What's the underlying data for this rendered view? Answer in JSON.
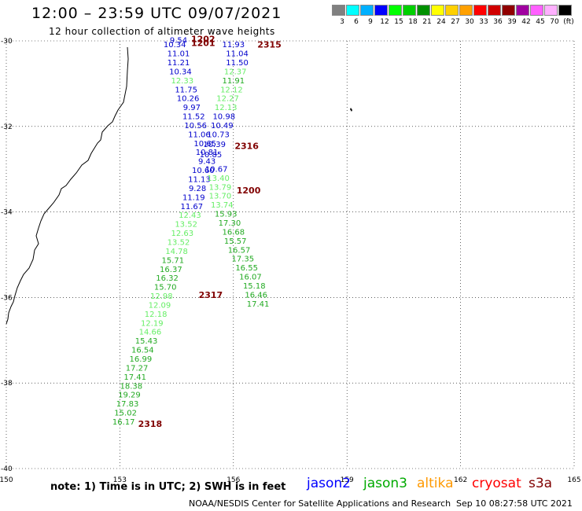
{
  "header": {
    "title": "12:00 – 23:59 UTC 09/07/2021",
    "subtitle": "12 hour collection of altimeter wave heights"
  },
  "legend": {
    "unit": "(ft)",
    "bins": [
      {
        "color": "#808080",
        "label": "3"
      },
      {
        "color": "#00ffff",
        "label": "6"
      },
      {
        "color": "#00b0ff",
        "label": "9"
      },
      {
        "color": "#0000ff",
        "label": "12"
      },
      {
        "color": "#00ff00",
        "label": "15"
      },
      {
        "color": "#00d000",
        "label": "18"
      },
      {
        "color": "#009000",
        "label": "21"
      },
      {
        "color": "#ffff00",
        "label": "24"
      },
      {
        "color": "#ffd000",
        "label": "27"
      },
      {
        "color": "#ffa000",
        "label": "30"
      },
      {
        "color": "#ff0000",
        "label": "33"
      },
      {
        "color": "#d00000",
        "label": "36"
      },
      {
        "color": "#900000",
        "label": "39"
      },
      {
        "color": "#a000a0",
        "label": "42"
      },
      {
        "color": "#ff60ff",
        "label": "45"
      },
      {
        "color": "#ffb0ff",
        "label": "70"
      },
      {
        "color": "#000000",
        "label": ""
      }
    ]
  },
  "map": {
    "lon_range": [
      150,
      165
    ],
    "lat_range": [
      -40,
      -30
    ],
    "lon_ticks": [
      "150",
      "153",
      "156",
      "159",
      "162",
      "165"
    ],
    "lat_ticks": [
      "-30",
      "-32",
      "-34",
      "-36",
      "-38",
      "-40"
    ],
    "colors": {
      "c1": "#0000cc",
      "c2": "#66ee66",
      "c3": "#22aa22"
    },
    "track_labels": [
      {
        "text": "1202",
        "lon": 155.2,
        "lat": -30.03
      },
      {
        "text": "1201",
        "lon": 155.2,
        "lat": -30.12
      },
      {
        "text": "2315",
        "lon": 156.95,
        "lat": -30.16
      },
      {
        "text": "2316",
        "lon": 156.35,
        "lat": -32.53
      },
      {
        "text": "1200",
        "lon": 156.4,
        "lat": -33.57
      },
      {
        "text": "2317",
        "lon": 155.4,
        "lat": -36.01
      },
      {
        "text": "2318",
        "lon": 153.8,
        "lat": -39.03
      }
    ],
    "readings": [
      {
        "v": "9.54",
        "lon": 154.55,
        "lat": -30.05,
        "c": "c1"
      },
      {
        "v": "10.34",
        "lon": 154.45,
        "lat": -30.15,
        "c": "c1"
      },
      {
        "v": "11.93",
        "lon": 156.0,
        "lat": -30.15,
        "c": "c1"
      },
      {
        "v": "11.01",
        "lon": 154.55,
        "lat": -30.36,
        "c": "c1"
      },
      {
        "v": "11.04",
        "lon": 156.1,
        "lat": -30.36,
        "c": "c1"
      },
      {
        "v": "11.21",
        "lon": 154.55,
        "lat": -30.57,
        "c": "c1"
      },
      {
        "v": "11.50",
        "lon": 156.1,
        "lat": -30.57,
        "c": "c1"
      },
      {
        "v": "10.34",
        "lon": 154.6,
        "lat": -30.78,
        "c": "c1"
      },
      {
        "v": "12.37",
        "lon": 156.05,
        "lat": -30.78,
        "c": "c2"
      },
      {
        "v": "12.33",
        "lon": 154.65,
        "lat": -30.99,
        "c": "c2"
      },
      {
        "v": "11.91",
        "lon": 156.0,
        "lat": -30.99,
        "c": "c3"
      },
      {
        "v": "11.75",
        "lon": 154.75,
        "lat": -31.2,
        "c": "c1"
      },
      {
        "v": "12.12",
        "lon": 155.95,
        "lat": -31.2,
        "c": "c2"
      },
      {
        "v": "10.26",
        "lon": 154.8,
        "lat": -31.41,
        "c": "c1"
      },
      {
        "v": "12.27",
        "lon": 155.85,
        "lat": -31.41,
        "c": "c2"
      },
      {
        "v": "9.97",
        "lon": 154.9,
        "lat": -31.62,
        "c": "c1"
      },
      {
        "v": "12.13",
        "lon": 155.8,
        "lat": -31.62,
        "c": "c2"
      },
      {
        "v": "11.52",
        "lon": 154.95,
        "lat": -31.83,
        "c": "c1"
      },
      {
        "v": "10.98",
        "lon": 155.75,
        "lat": -31.83,
        "c": "c1"
      },
      {
        "v": "10.56",
        "lon": 155.0,
        "lat": -32.04,
        "c": "c1"
      },
      {
        "v": "10.49",
        "lon": 155.7,
        "lat": -32.04,
        "c": "c1"
      },
      {
        "v": "11.06",
        "lon": 155.1,
        "lat": -32.25,
        "c": "c1"
      },
      {
        "v": "10.73",
        "lon": 155.6,
        "lat": -32.25,
        "c": "c1"
      },
      {
        "v": "10.65",
        "lon": 155.25,
        "lat": -32.46,
        "c": "c1"
      },
      {
        "v": "10.39",
        "lon": 155.5,
        "lat": -32.48,
        "c": "c1"
      },
      {
        "v": "10.81",
        "lon": 155.3,
        "lat": -32.67,
        "c": "c1"
      },
      {
        "v": "10.85",
        "lon": 155.4,
        "lat": -32.72,
        "c": "c1"
      },
      {
        "v": "9.43",
        "lon": 155.3,
        "lat": -32.88,
        "c": "c1"
      },
      {
        "v": "10.60",
        "lon": 155.2,
        "lat": -33.09,
        "c": "c1"
      },
      {
        "v": "10.67",
        "lon": 155.55,
        "lat": -33.06,
        "c": "c1"
      },
      {
        "v": "11.13",
        "lon": 155.1,
        "lat": -33.3,
        "c": "c1"
      },
      {
        "v": "13.40",
        "lon": 155.6,
        "lat": -33.27,
        "c": "c2"
      },
      {
        "v": "9.28",
        "lon": 155.05,
        "lat": -33.51,
        "c": "c1"
      },
      {
        "v": "13.79",
        "lon": 155.65,
        "lat": -33.48,
        "c": "c2"
      },
      {
        "v": "11.19",
        "lon": 154.95,
        "lat": -33.72,
        "c": "c1"
      },
      {
        "v": "13.70",
        "lon": 155.65,
        "lat": -33.69,
        "c": "c2"
      },
      {
        "v": "11.67",
        "lon": 154.9,
        "lat": -33.93,
        "c": "c1"
      },
      {
        "v": "13.74",
        "lon": 155.7,
        "lat": -33.9,
        "c": "c2"
      },
      {
        "v": "12.43",
        "lon": 154.85,
        "lat": -34.14,
        "c": "c2"
      },
      {
        "v": "15.93",
        "lon": 155.8,
        "lat": -34.11,
        "c": "c3"
      },
      {
        "v": "13.52",
        "lon": 154.75,
        "lat": -34.35,
        "c": "c2"
      },
      {
        "v": "17.30",
        "lon": 155.9,
        "lat": -34.32,
        "c": "c3"
      },
      {
        "v": "12.63",
        "lon": 154.65,
        "lat": -34.56,
        "c": "c2"
      },
      {
        "v": "16.68",
        "lon": 156.0,
        "lat": -34.53,
        "c": "c3"
      },
      {
        "v": "13.52",
        "lon": 154.55,
        "lat": -34.77,
        "c": "c2"
      },
      {
        "v": "15.57",
        "lon": 156.05,
        "lat": -34.74,
        "c": "c3"
      },
      {
        "v": "14.78",
        "lon": 154.5,
        "lat": -34.98,
        "c": "c2"
      },
      {
        "v": "16.57",
        "lon": 156.15,
        "lat": -34.95,
        "c": "c3"
      },
      {
        "v": "15.71",
        "lon": 154.4,
        "lat": -35.19,
        "c": "c3"
      },
      {
        "v": "17.35",
        "lon": 156.25,
        "lat": -35.16,
        "c": "c3"
      },
      {
        "v": "16.37",
        "lon": 154.35,
        "lat": -35.4,
        "c": "c3"
      },
      {
        "v": "16.55",
        "lon": 156.35,
        "lat": -35.37,
        "c": "c3"
      },
      {
        "v": "16.32",
        "lon": 154.25,
        "lat": -35.61,
        "c": "c3"
      },
      {
        "v": "16.07",
        "lon": 156.45,
        "lat": -35.58,
        "c": "c3"
      },
      {
        "v": "15.70",
        "lon": 154.2,
        "lat": -35.82,
        "c": "c3"
      },
      {
        "v": "15.18",
        "lon": 156.55,
        "lat": -35.79,
        "c": "c3"
      },
      {
        "v": "12.98",
        "lon": 154.1,
        "lat": -36.03,
        "c": "c2"
      },
      {
        "v": "16.46",
        "lon": 156.6,
        "lat": -36.0,
        "c": "c3"
      },
      {
        "v": "12.09",
        "lon": 154.05,
        "lat": -36.24,
        "c": "c2"
      },
      {
        "v": "17.41",
        "lon": 156.65,
        "lat": -36.21,
        "c": "c3"
      },
      {
        "v": "12.18",
        "lon": 153.95,
        "lat": -36.45,
        "c": "c2"
      },
      {
        "v": "12.19",
        "lon": 153.85,
        "lat": -36.66,
        "c": "c2"
      },
      {
        "v": "14.66",
        "lon": 153.8,
        "lat": -36.87,
        "c": "c2"
      },
      {
        "v": "15.43",
        "lon": 153.7,
        "lat": -37.08,
        "c": "c3"
      },
      {
        "v": "16.54",
        "lon": 153.6,
        "lat": -37.29,
        "c": "c3"
      },
      {
        "v": "16.99",
        "lon": 153.55,
        "lat": -37.5,
        "c": "c3"
      },
      {
        "v": "17.27",
        "lon": 153.45,
        "lat": -37.71,
        "c": "c3"
      },
      {
        "v": "17.41",
        "lon": 153.4,
        "lat": -37.92,
        "c": "c3"
      },
      {
        "v": "18.38",
        "lon": 153.3,
        "lat": -38.13,
        "c": "c3"
      },
      {
        "v": "19.29",
        "lon": 153.25,
        "lat": -38.34,
        "c": "c3"
      },
      {
        "v": "17.83",
        "lon": 153.2,
        "lat": -38.55,
        "c": "c3"
      },
      {
        "v": "15.02",
        "lon": 153.15,
        "lat": -38.76,
        "c": "c3"
      },
      {
        "v": "16.17",
        "lon": 153.1,
        "lat": -38.97,
        "c": "c3"
      }
    ]
  },
  "footer": {
    "note": "note: 1) Time is in UTC; 2) SWH is in feet",
    "satellites": [
      {
        "name": "jason2",
        "color": "#0000ff"
      },
      {
        "name": "jason3",
        "color": "#00aa00"
      },
      {
        "name": "altika",
        "color": "#ff9900"
      },
      {
        "name": "cryosat",
        "color": "#ff0000"
      },
      {
        "name": "s3a",
        "color": "#800000"
      }
    ],
    "credit": "NOAA/NESDIS Center for Satellite Applications and Research",
    "timestamp": "Sep 10 08:27:58 UTC 2021"
  }
}
